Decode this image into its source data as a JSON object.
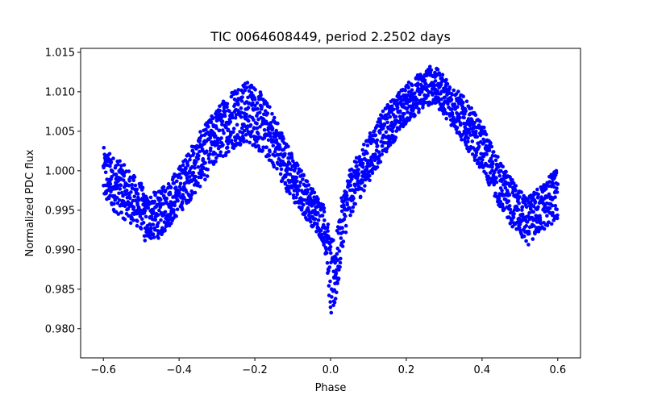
{
  "chart_data": {
    "type": "scatter",
    "title": "TIC 0064608449, period 2.2502 days",
    "xlabel": "Phase",
    "ylabel": "Normalized PDC flux",
    "xlim": [
      -0.66,
      0.66
    ],
    "ylim": [
      0.9763,
      1.0155
    ],
    "xticks": [
      -0.6,
      -0.4,
      -0.2,
      0.0,
      0.2,
      0.4,
      0.6
    ],
    "xtick_labels": [
      "−0.6",
      "−0.4",
      "−0.2",
      "0.0",
      "0.2",
      "0.4",
      "0.6"
    ],
    "yticks": [
      0.98,
      0.985,
      0.99,
      0.995,
      1.0,
      1.005,
      1.01,
      1.015
    ],
    "ytick_labels": [
      "0.980",
      "0.985",
      "0.990",
      "0.995",
      "1.000",
      "1.005",
      "1.010",
      "1.015"
    ],
    "grid": false,
    "marker_color": "#0000ff",
    "series": [
      {
        "x": [
          -0.6,
          -0.55,
          -0.5,
          -0.49,
          -0.45,
          -0.4,
          -0.35,
          -0.3,
          -0.25,
          -0.23,
          -0.2,
          -0.15,
          -0.1,
          -0.05,
          -0.02,
          -0.01,
          0.0,
          0.01,
          0.02,
          0.03,
          0.05,
          0.1,
          0.15,
          0.2,
          0.25,
          0.27,
          0.3,
          0.35,
          0.4,
          0.45,
          0.5,
          0.52,
          0.55,
          0.6
        ],
        "y": [
          0.9995,
          0.9975,
          0.9955,
          0.994,
          0.9945,
          0.9975,
          1.001,
          1.0045,
          1.007,
          1.0075,
          1.007,
          1.004,
          0.999,
          0.9955,
          0.9935,
          0.9915,
          0.986,
          0.987,
          0.989,
          0.9935,
          0.997,
          1.0015,
          1.0055,
          1.0085,
          1.0105,
          1.011,
          1.0095,
          1.0065,
          1.003,
          0.998,
          0.9945,
          0.9935,
          0.995,
          0.997
        ],
        "spread": [
          0.0035,
          0.0035,
          0.003,
          0.003,
          0.003,
          0.003,
          0.0035,
          0.0035,
          0.004,
          0.004,
          0.004,
          0.0035,
          0.003,
          0.0025,
          0.0025,
          0.003,
          0.005,
          0.005,
          0.004,
          0.0035,
          0.003,
          0.003,
          0.003,
          0.0025,
          0.0025,
          0.0025,
          0.0025,
          0.003,
          0.003,
          0.003,
          0.003,
          0.003,
          0.003,
          0.0035
        ]
      }
    ]
  }
}
